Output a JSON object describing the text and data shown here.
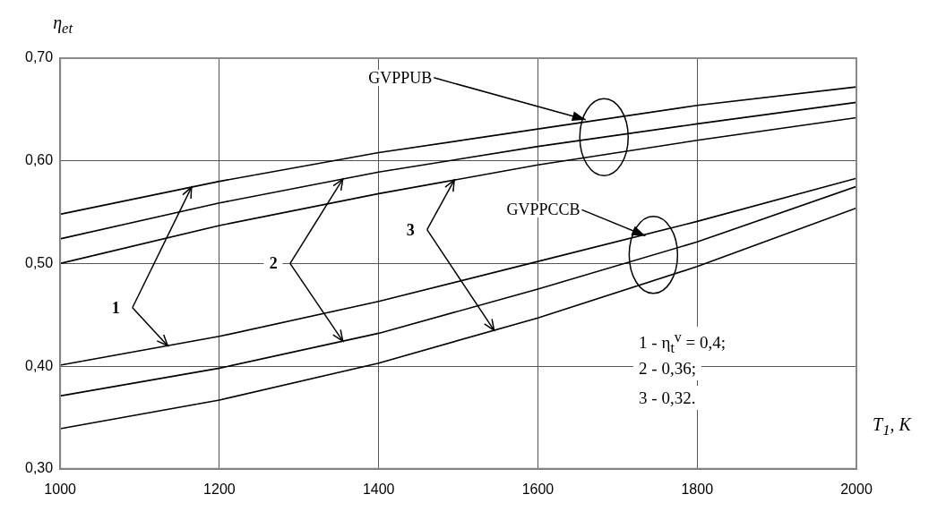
{
  "chart_data": {
    "type": "line",
    "ylabel": "η$_{et}$",
    "xlabel": "T$_{1}$, K",
    "x": [
      1000,
      1200,
      1400,
      1600,
      1800,
      2000
    ],
    "series": [
      {
        "color": "#000000",
        "values": [
          0.548,
          0.58,
          0.608,
          0.631,
          0.654,
          0.672
        ]
      },
      {
        "color": "#000000",
        "values": [
          0.524,
          0.559,
          0.589,
          0.614,
          0.636,
          0.657
        ]
      },
      {
        "color": "#000000",
        "values": [
          0.5,
          0.537,
          0.568,
          0.596,
          0.62,
          0.642
        ]
      },
      {
        "color": "#000000",
        "values": [
          0.401,
          0.429,
          0.463,
          0.502,
          0.541,
          0.583
        ]
      },
      {
        "color": "#000000",
        "values": [
          0.371,
          0.398,
          0.432,
          0.475,
          0.521,
          0.575
        ]
      },
      {
        "color": "#000000",
        "values": [
          0.339,
          0.367,
          0.403,
          0.447,
          0.497,
          0.554
        ]
      }
    ],
    "annotations": [
      {
        "text": "GVPPUB",
        "x": 1660,
        "y": 0.64
      },
      {
        "text": "GVPPCCB",
        "x": 1735,
        "y": 0.527
      },
      {
        "text": "1",
        "x": 1070,
        "y": 0.457
      },
      {
        "text": "2",
        "x": 1268,
        "y": 0.5
      },
      {
        "text": "3",
        "x": 1440,
        "y": 0.533
      },
      "1 - η$_{t}$$^{v}$ = 0,4;",
      "2 - 0,36;",
      "3 - 0,32."
    ],
    "xlim": [
      1000,
      2000
    ],
    "xticks": [
      1000,
      1200,
      1400,
      1600,
      1800,
      2000
    ],
    "ylim": [
      0.3,
      0.7
    ],
    "yticks": [
      {
        "value": 0.3,
        "label": "0,30"
      },
      {
        "value": 0.4,
        "label": "0,40"
      },
      {
        "value": 0.5,
        "label": "0,50"
      },
      {
        "value": 0.6,
        "label": "0,60"
      },
      {
        "value": 0.7,
        "label": "0,70"
      }
    ],
    "grid": true,
    "legend": false,
    "marker": "none",
    "line_style": "solid"
  }
}
